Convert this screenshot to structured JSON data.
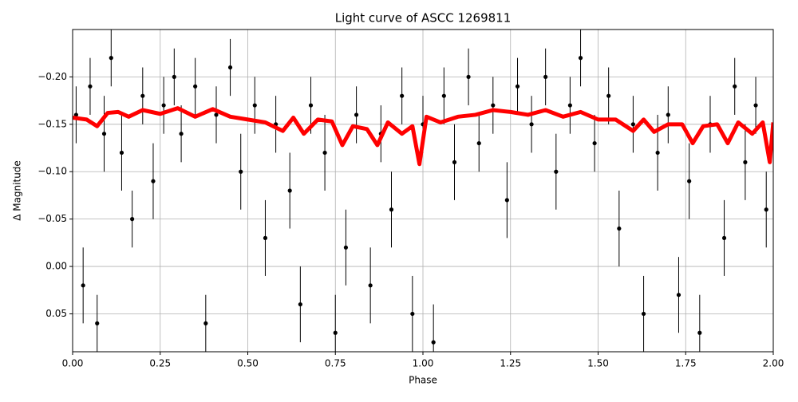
{
  "chart_data": {
    "type": "scatter",
    "title": "Light curve of ASCC 1269811",
    "xlabel": "Phase",
    "ylabel": "Δ Magnitude",
    "xlim": [
      0,
      2
    ],
    "ylim": [
      0.09,
      -0.25
    ],
    "grid": true,
    "xticks": [
      {
        "value": 0,
        "label": "0.00"
      },
      0.25,
      {
        "value": 0.5,
        "label": "0.50"
      },
      0.75,
      {
        "value": 1,
        "label": "1.00"
      },
      1.25,
      {
        "value": 1.5,
        "label": "1.50"
      },
      1.75,
      {
        "value": 2,
        "label": "2.00"
      }
    ],
    "yticks": [
      {
        "value": -0.2,
        "label": "−0.20"
      },
      {
        "value": -0.15,
        "label": "−0.15"
      },
      {
        "value": -0.1,
        "label": "−0.10"
      },
      {
        "value": -0.05,
        "label": "−0.05"
      },
      {
        "value": 0,
        "label": "0.00"
      },
      0.05
    ],
    "series": [
      {
        "kind": "errorbar",
        "color": "#000000",
        "x": [
          0.01,
          0.03,
          0.05,
          0.07,
          0.09,
          0.11,
          0.14,
          0.17,
          0.2,
          0.23,
          0.26,
          0.29,
          0.31,
          0.35,
          0.38,
          0.41,
          0.45,
          0.48,
          0.52,
          0.55,
          0.58,
          0.62,
          0.65,
          0.68,
          0.72,
          0.75,
          0.78,
          0.81,
          0.85,
          0.88,
          0.91,
          0.94,
          0.97,
          1.0,
          1.03,
          1.06,
          1.09,
          1.13,
          1.16,
          1.2,
          1.24,
          1.27,
          1.31,
          1.35,
          1.38,
          1.42,
          1.45,
          1.49,
          1.53,
          1.56,
          1.6,
          1.63,
          1.67,
          1.7,
          1.73,
          1.76,
          1.79,
          1.82,
          1.86,
          1.89,
          1.92,
          1.95,
          1.98
        ],
        "values": [
          -0.16,
          0.02,
          -0.19,
          0.06,
          -0.14,
          -0.22,
          -0.12,
          -0.05,
          -0.18,
          -0.09,
          -0.17,
          -0.2,
          -0.14,
          -0.19,
          0.06,
          -0.16,
          -0.21,
          -0.1,
          -0.17,
          -0.03,
          -0.15,
          -0.08,
          0.04,
          -0.17,
          -0.12,
          0.07,
          -0.02,
          -0.16,
          0.02,
          -0.14,
          -0.06,
          -0.18,
          0.05,
          -0.15,
          0.08,
          -0.18,
          -0.11,
          -0.2,
          -0.13,
          -0.17,
          -0.07,
          -0.19,
          -0.15,
          -0.2,
          -0.1,
          -0.17,
          -0.22,
          -0.13,
          -0.18,
          -0.04,
          -0.15,
          0.05,
          -0.12,
          -0.16,
          0.03,
          -0.09,
          0.07,
          -0.15,
          -0.03,
          -0.19,
          -0.11,
          -0.17,
          -0.06
        ],
        "errors": [
          0.03,
          0.04,
          0.03,
          0.03,
          0.04,
          0.03,
          0.04,
          0.03,
          0.03,
          0.04,
          0.03,
          0.03,
          0.03,
          0.03,
          0.03,
          0.03,
          0.03,
          0.04,
          0.03,
          0.04,
          0.03,
          0.04,
          0.04,
          0.03,
          0.04,
          0.04,
          0.04,
          0.03,
          0.04,
          0.03,
          0.04,
          0.03,
          0.04,
          0.03,
          0.04,
          0.03,
          0.04,
          0.03,
          0.03,
          0.03,
          0.04,
          0.03,
          0.03,
          0.03,
          0.04,
          0.03,
          0.03,
          0.03,
          0.03,
          0.04,
          0.03,
          0.04,
          0.04,
          0.03,
          0.04,
          0.04,
          0.04,
          0.03,
          0.04,
          0.03,
          0.04,
          0.03,
          0.04
        ]
      },
      {
        "kind": "line",
        "color": "#ff0000",
        "x": [
          0,
          0.04,
          0.07,
          0.1,
          0.13,
          0.16,
          0.2,
          0.25,
          0.3,
          0.35,
          0.4,
          0.45,
          0.5,
          0.55,
          0.6,
          0.63,
          0.66,
          0.7,
          0.74,
          0.77,
          0.8,
          0.84,
          0.87,
          0.9,
          0.94,
          0.97,
          0.99,
          1.01,
          1.05,
          1.1,
          1.15,
          1.2,
          1.25,
          1.3,
          1.35,
          1.4,
          1.45,
          1.5,
          1.55,
          1.6,
          1.63,
          1.66,
          1.7,
          1.74,
          1.77,
          1.8,
          1.84,
          1.87,
          1.9,
          1.94,
          1.97,
          1.99,
          2.0
        ],
        "values": [
          -0.157,
          -0.155,
          -0.148,
          -0.162,
          -0.163,
          -0.158,
          -0.165,
          -0.161,
          -0.167,
          -0.158,
          -0.166,
          -0.158,
          -0.155,
          -0.152,
          -0.143,
          -0.157,
          -0.14,
          -0.155,
          -0.153,
          -0.128,
          -0.148,
          -0.145,
          -0.128,
          -0.152,
          -0.14,
          -0.148,
          -0.108,
          -0.158,
          -0.152,
          -0.158,
          -0.16,
          -0.165,
          -0.163,
          -0.16,
          -0.165,
          -0.158,
          -0.163,
          -0.155,
          -0.155,
          -0.143,
          -0.155,
          -0.142,
          -0.15,
          -0.15,
          -0.13,
          -0.148,
          -0.15,
          -0.13,
          -0.152,
          -0.14,
          -0.152,
          -0.11,
          -0.152
        ]
      }
    ]
  }
}
